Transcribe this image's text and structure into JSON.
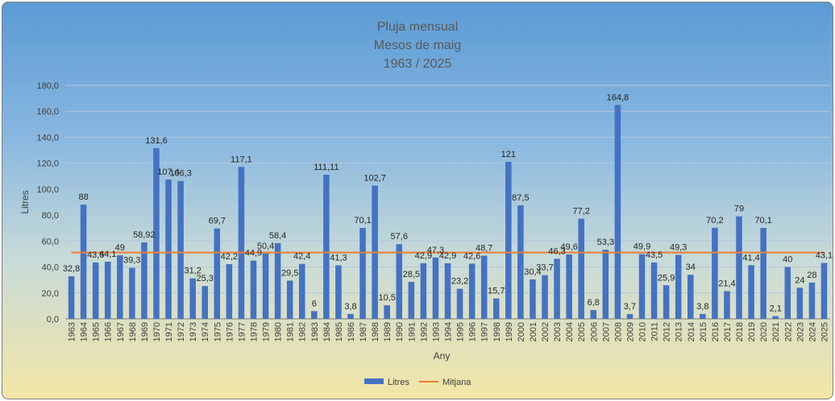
{
  "chart_data": {
    "type": "bar",
    "title": [
      "Pluja mensual",
      "Mesos de maig",
      "1963 / 2025"
    ],
    "xlabel": "Any",
    "ylabel": "Litres",
    "ylim": [
      0,
      180
    ],
    "yticks": [
      "0,0",
      "20,0",
      "40,0",
      "60,0",
      "80,0",
      "100,0",
      "120,0",
      "140,0",
      "160,0",
      "180,0"
    ],
    "grid": true,
    "legend_position": "bottom",
    "categories": [
      "1963",
      "1964",
      "1965",
      "1966",
      "1967",
      "1968",
      "1969",
      "1970",
      "1971",
      "1972",
      "1973",
      "1974",
      "1975",
      "1976",
      "1977",
      "1978",
      "1979",
      "1980",
      "1981",
      "1982",
      "1983",
      "1984",
      "1985",
      "1986",
      "1987",
      "1988",
      "1989",
      "1990",
      "1991",
      "1992",
      "1993",
      "1994",
      "1995",
      "1996",
      "1997",
      "1998",
      "1999",
      "2000",
      "2001",
      "2002",
      "2003",
      "2004",
      "2005",
      "2006",
      "2007",
      "2008",
      "2009",
      "2010",
      "2011",
      "2012",
      "2013",
      "2014",
      "2015",
      "2016",
      "2017",
      "2018",
      "2019",
      "2020",
      "2021",
      "2022",
      "2023",
      "2024",
      "2025"
    ],
    "series": [
      {
        "name": "Litres",
        "type": "bar",
        "color": "#4472c4",
        "values": [
          32.8,
          88,
          43.5,
          44.1,
          49,
          39.3,
          58.92,
          131.6,
          107.4,
          106.3,
          31.2,
          25.3,
          69.7,
          42.2,
          117.1,
          44.9,
          50.4,
          58.4,
          29.5,
          42.4,
          6,
          111.11,
          41.3,
          3.8,
          70.1,
          102.7,
          10.5,
          57.6,
          28.5,
          42.9,
          47.3,
          42.9,
          23.2,
          42.6,
          48.7,
          15.7,
          121,
          87.5,
          30.4,
          33.7,
          46.3,
          49.6,
          77.2,
          6.8,
          53.3,
          164.8,
          3.7,
          49.9,
          43.5,
          25.9,
          49.3,
          34,
          3.8,
          70.2,
          21.4,
          79,
          41.4,
          70.1,
          2.1,
          40,
          24,
          28,
          43.1
        ],
        "labels": [
          "32,8",
          "88",
          "43,5",
          "44,1",
          "49",
          "39,3",
          "58,92",
          "131,6",
          "107,4",
          "106,3",
          "31,2",
          "25,3",
          "69,7",
          "42,2",
          "117,1",
          "44,9",
          "50,4",
          "58,4",
          "29,5",
          "42,4",
          "6",
          "111,11",
          "41,3",
          "3,8",
          "70,1",
          "102,7",
          "10,5",
          "57,6",
          "28,5",
          "42,9",
          "47,3",
          "42,9",
          "23,2",
          "42,6",
          "48,7",
          "15,7",
          "121",
          "87,5",
          "30,4",
          "33,7",
          "46,3",
          "49,6",
          "77,2",
          "6,8",
          "53,3",
          "164,8",
          "3,7",
          "49,9",
          "43,5",
          "25,9",
          "49,3",
          "34",
          "3,8",
          "70,2",
          "21,4",
          "79",
          "41,4",
          "70,1",
          "2,1",
          "40",
          "24",
          "28",
          "43,1"
        ]
      },
      {
        "name": "Mitjana",
        "type": "line",
        "color": "#ed7d31",
        "value": 51.1
      }
    ]
  }
}
